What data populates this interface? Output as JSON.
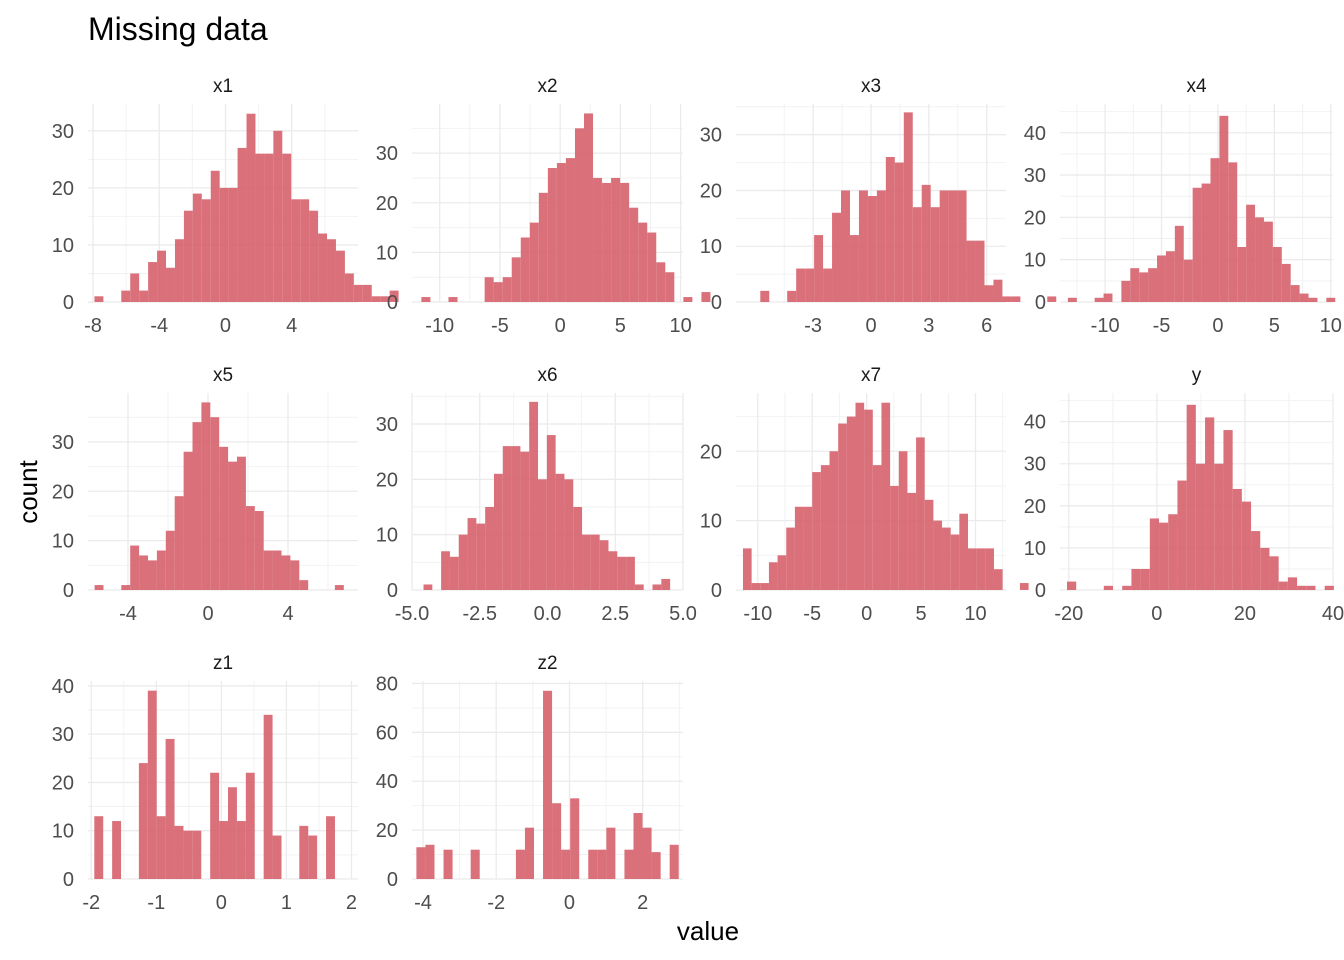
{
  "chart_data": {
    "type": "bar",
    "title": "Missing data",
    "xlabel": "value",
    "ylabel": "count",
    "grid": true,
    "bar_color": "#d6616b",
    "panels": [
      {
        "name": "x1",
        "xlim": [
          -8.3,
          8.0
        ],
        "ylim": [
          0,
          34.7
        ],
        "xticks": [
          -8,
          -4,
          0,
          4
        ],
        "xtick_labels": [
          "-8",
          "-4",
          "0",
          "4"
        ],
        "yticks": [
          0,
          10,
          20,
          30
        ],
        "bin_start": -7.91,
        "bin_width": 0.54,
        "values": [
          1,
          0,
          0,
          2,
          5,
          2,
          7,
          9,
          6,
          11,
          16,
          19,
          18,
          23,
          20,
          20,
          27,
          33,
          26,
          26,
          30,
          26,
          18,
          18,
          16,
          12,
          11,
          9,
          5,
          3,
          3,
          1,
          1,
          2
        ]
      },
      {
        "name": "x2",
        "xlim": [
          -12.3,
          10.2
        ],
        "ylim": [
          0,
          39.9
        ],
        "xticks": [
          -10,
          -5,
          0,
          5,
          10
        ],
        "xtick_labels": [
          "-10",
          "-5",
          "0",
          "5",
          "10"
        ],
        "yticks": [
          0,
          10,
          20,
          30
        ],
        "bin_start": -11.52,
        "bin_width": 0.75,
        "values": [
          1,
          0,
          0,
          1,
          0,
          0,
          0,
          5,
          4,
          5,
          9,
          13,
          16,
          22,
          27,
          28,
          29,
          35,
          38,
          25,
          24,
          25,
          24,
          19,
          16,
          14,
          8,
          6,
          0,
          1,
          0,
          2
        ]
      },
      {
        "name": "x3",
        "xlim": [
          -7.0,
          7.0
        ],
        "ylim": [
          0,
          35.5
        ],
        "xticks": [
          -3,
          0,
          3,
          6
        ],
        "xtick_labels": [
          "-3",
          "0",
          "3",
          "6"
        ],
        "yticks": [
          0,
          10,
          20,
          30
        ],
        "bin_start": -5.74,
        "bin_width": 0.465,
        "values": [
          2,
          0,
          0,
          2,
          6,
          6,
          12,
          6,
          16,
          20,
          12,
          20,
          19,
          20,
          26,
          25,
          34,
          17,
          21,
          17,
          20,
          20,
          20,
          11,
          11,
          3,
          4,
          1,
          1,
          0,
          0,
          0,
          1
        ]
      },
      {
        "name": "x4",
        "xlim": [
          -14.0,
          10.2
        ],
        "ylim": [
          0,
          46.8
        ],
        "xticks": [
          -10,
          -5,
          0,
          5,
          10
        ],
        "xtick_labels": [
          "-10",
          "-5",
          "0",
          "5",
          "10"
        ],
        "yticks": [
          0,
          10,
          20,
          30,
          40
        ],
        "bin_start": -13.3,
        "bin_width": 0.79,
        "values": [
          1,
          0,
          0,
          1,
          2,
          0,
          5,
          8,
          7,
          8,
          11,
          12,
          18,
          10,
          27,
          28,
          34,
          44,
          33,
          13,
          23,
          20,
          19,
          13,
          9,
          4,
          2,
          1,
          0,
          1
        ]
      },
      {
        "name": "x5",
        "xlim": [
          -6.0,
          7.5
        ],
        "ylim": [
          0,
          39.9
        ],
        "xticks": [
          -4,
          0,
          4
        ],
        "xtick_labels": [
          "-4",
          "0",
          "4"
        ],
        "yticks": [
          0,
          10,
          20,
          30
        ],
        "bin_start": -5.67,
        "bin_width": 0.445,
        "values": [
          1,
          0,
          0,
          1,
          9,
          7,
          6,
          8,
          12,
          19,
          28,
          34,
          38,
          35,
          29,
          26,
          27,
          17,
          16,
          8,
          8,
          7,
          6,
          2,
          0,
          0,
          0,
          1
        ]
      },
      {
        "name": "x6",
        "xlim": [
          -5.0,
          5.0
        ],
        "ylim": [
          0,
          35.6
        ],
        "xticks": [
          -5.0,
          -2.5,
          0.0,
          2.5,
          5.0
        ],
        "xtick_labels": [
          "-5.0",
          "-2.5",
          "0.0",
          "2.5",
          "5.0"
        ],
        "yticks": [
          0,
          10,
          20,
          30
        ],
        "bin_start": -4.9,
        "bin_width": 0.325,
        "values": [
          0,
          1,
          0,
          7,
          6,
          10,
          13,
          12,
          15,
          21,
          26,
          26,
          25,
          34,
          20,
          28,
          21,
          20,
          15,
          10,
          10,
          9,
          7,
          6,
          6,
          1,
          0,
          1,
          2
        ]
      },
      {
        "name": "x7",
        "xlim": [
          -12.0,
          12.8
        ],
        "ylim": [
          0,
          28.4
        ],
        "xticks": [
          -10,
          -5,
          0,
          5,
          10
        ],
        "xtick_labels": [
          "-10",
          "-5",
          "0",
          "5",
          "10"
        ],
        "yticks": [
          0,
          10,
          20
        ],
        "bin_start": -11.36,
        "bin_width": 0.795,
        "values": [
          6,
          1,
          1,
          4,
          5,
          9,
          12,
          12,
          17,
          18,
          20,
          24,
          25,
          27,
          26,
          18,
          27,
          15,
          20,
          14,
          22,
          13,
          10,
          9,
          8,
          11,
          6,
          6,
          6,
          3,
          0,
          0,
          1
        ]
      },
      {
        "name": "y",
        "xlim": [
          -22.0,
          40.0
        ],
        "ylim": [
          0,
          46.8
        ],
        "xticks": [
          -20,
          0,
          20,
          40
        ],
        "xtick_labels": [
          "-20",
          "0",
          "20",
          "40"
        ],
        "yticks": [
          0,
          10,
          20,
          30,
          40
        ],
        "bin_start": -20.41,
        "bin_width": 2.09,
        "values": [
          2,
          0,
          0,
          0,
          1,
          0,
          1,
          5,
          5,
          17,
          16,
          18,
          26,
          44,
          30,
          41,
          30,
          38,
          24,
          21,
          14,
          10,
          8,
          2,
          3,
          1,
          1,
          0,
          1
        ]
      },
      {
        "name": "z1",
        "xlim": [
          -2.05,
          2.1
        ],
        "ylim": [
          0,
          41.0
        ],
        "xticks": [
          -2,
          -1,
          0,
          1,
          2
        ],
        "xtick_labels": [
          "-2",
          "-1",
          "0",
          "1",
          "2"
        ],
        "yticks": [
          0,
          10,
          20,
          30,
          40
        ],
        "bin_start": -1.953,
        "bin_width": 0.137,
        "values": [
          13,
          0,
          12,
          0,
          0,
          24,
          39,
          13,
          29,
          11,
          10,
          10,
          0,
          22,
          12,
          19,
          12,
          22,
          0,
          34,
          9,
          0,
          0,
          11,
          9,
          0,
          13
        ]
      },
      {
        "name": "z2",
        "xlim": [
          -4.3,
          3.1
        ],
        "ylim": [
          0,
          81.0
        ],
        "xticks": [
          -4,
          -2,
          0,
          2
        ],
        "xtick_labels": [
          "-4",
          "-2",
          "0",
          "2"
        ],
        "yticks": [
          0,
          20,
          40,
          60,
          80
        ],
        "bin_start": -4.18,
        "bin_width": 0.247,
        "values": [
          13,
          14,
          0,
          12,
          0,
          0,
          12,
          0,
          0,
          0,
          0,
          12,
          21,
          0,
          77,
          31,
          12,
          33,
          0,
          12,
          12,
          21,
          0,
          12,
          27,
          21,
          11,
          0,
          14
        ]
      }
    ]
  }
}
